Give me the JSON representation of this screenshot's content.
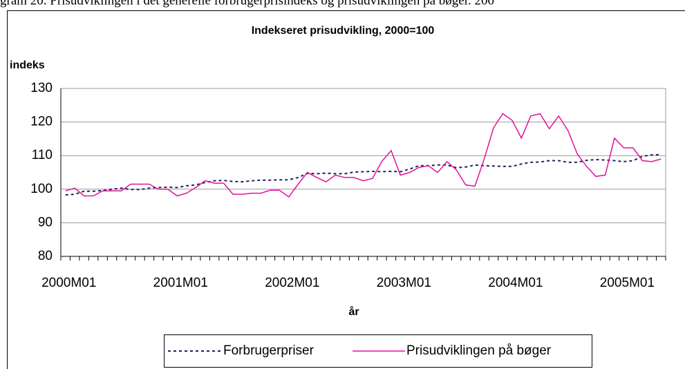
{
  "caption": "gram 20. Prisudviklingen i det generelle forbrugerprisindeks og prisudviklingen på bøger. 200",
  "chart_data": {
    "type": "line",
    "title": "Indekseret prisudvikling, 2000=100",
    "y_label": "indeks",
    "x_label": "år",
    "categories": [
      "2000M01",
      null,
      null,
      null,
      null,
      null,
      null,
      null,
      null,
      null,
      null,
      null,
      "2001M01",
      null,
      null,
      null,
      null,
      null,
      null,
      null,
      null,
      null,
      null,
      null,
      "2002M01",
      null,
      null,
      null,
      null,
      null,
      null,
      null,
      null,
      null,
      null,
      null,
      "2003M01",
      null,
      null,
      null,
      null,
      null,
      null,
      null,
      null,
      null,
      null,
      null,
      "2004M01",
      null,
      null,
      null,
      null,
      null,
      null,
      null,
      null,
      null,
      null,
      null,
      "2005M01",
      null,
      null,
      null,
      null
    ],
    "series": [
      {
        "name": "Forbrugerpriser",
        "color": "#1f1f5f",
        "dashed": true,
        "values": [
          98.3,
          98.5,
          99.4,
          99.4,
          99.6,
          100,
          100.3,
          99.9,
          99.9,
          100.3,
          100.5,
          100.6,
          100.5,
          101,
          101.3,
          102,
          102.5,
          102.6,
          102.3,
          102.2,
          102.5,
          102.7,
          102.7,
          102.8,
          102.8,
          103.5,
          104.7,
          104.6,
          104.8,
          104.6,
          104.6,
          105.1,
          105.2,
          105.3,
          105.2,
          105.3,
          105.2,
          106,
          107,
          107,
          107.2,
          107.2,
          106.4,
          106.6,
          107.2,
          107,
          106.9,
          106.8,
          106.8,
          107.5,
          108,
          108.1,
          108.5,
          108.5,
          108,
          108,
          108.6,
          108.8,
          108.7,
          108.5,
          108.2,
          108.5,
          109.8,
          110.2,
          110.3
        ]
      },
      {
        "name": "Prisudviklingen på bøger",
        "color": "#e0119a",
        "dashed": false,
        "values": [
          99.5,
          100.3,
          98,
          98,
          99.5,
          99.5,
          99.5,
          101.5,
          101.5,
          101.5,
          100,
          100,
          98,
          98.8,
          100.5,
          102.5,
          101.8,
          101.8,
          98.5,
          98.5,
          98.8,
          98.8,
          99.7,
          99.7,
          97.7,
          101.5,
          105,
          103.5,
          102.2,
          104.2,
          103.5,
          103.5,
          102.5,
          103.2,
          108.3,
          111.5,
          104.2,
          105,
          106.5,
          107,
          105,
          108.2,
          105.8,
          101.3,
          100.9,
          109,
          118.3,
          122.5,
          120.5,
          115.2,
          121.8,
          122.5,
          118,
          121.8,
          117.5,
          110.5,
          106.8,
          103.8,
          104.2,
          115.2,
          112.3,
          112.3,
          108.5,
          108.2,
          109
        ]
      }
    ],
    "ylim": [
      80,
      130
    ],
    "yticks": [
      80,
      90,
      100,
      110,
      120,
      130
    ],
    "grid": true
  }
}
